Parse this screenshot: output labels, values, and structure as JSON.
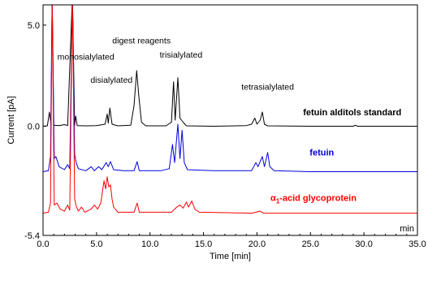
{
  "chart_data": {
    "type": "line",
    "xlabel": "Time [min]",
    "ylabel": "Current [pA]",
    "xlim": [
      0.0,
      35.0
    ],
    "ylim": [
      -5.4,
      6.0
    ],
    "x_ticks": [
      0.0,
      5.0,
      10.0,
      15.0,
      20.0,
      25.0,
      30.0,
      35.0
    ],
    "x_tick_labels": [
      "0.0",
      "5.0",
      "10.0",
      "15.0",
      "20.0",
      "25.0",
      "30.0",
      "35.0"
    ],
    "y_ticks": [
      5.0,
      0.0,
      -5.4
    ],
    "y_tick_labels": [
      "5.0",
      "0.0",
      "-5.4"
    ],
    "x_unit_label": "min",
    "grid": false,
    "series": [
      {
        "name": "fetuin alditols standard",
        "color": "#000000",
        "baseline": 0.0,
        "points": [
          [
            0.0,
            0.0
          ],
          [
            0.4,
            0.02
          ],
          [
            0.6,
            0.7
          ],
          [
            0.75,
            0.05
          ],
          [
            0.85,
            6.5
          ],
          [
            1.0,
            0.05
          ],
          [
            1.5,
            0.03
          ],
          [
            2.0,
            0.08
          ],
          [
            2.3,
            0.03
          ],
          [
            2.75,
            6.5
          ],
          [
            2.95,
            0.05
          ],
          [
            3.05,
            0.5
          ],
          [
            3.2,
            0.03
          ],
          [
            4.0,
            0.02
          ],
          [
            5.0,
            0.03
          ],
          [
            5.8,
            0.1
          ],
          [
            6.0,
            0.6
          ],
          [
            6.1,
            0.15
          ],
          [
            6.25,
            0.9
          ],
          [
            6.45,
            0.1
          ],
          [
            7.0,
            0.02
          ],
          [
            8.2,
            0.05
          ],
          [
            8.5,
            1.0
          ],
          [
            8.75,
            2.75
          ],
          [
            8.95,
            1.5
          ],
          [
            9.2,
            0.2
          ],
          [
            9.6,
            0.02
          ],
          [
            11.5,
            0.02
          ],
          [
            12.0,
            0.2
          ],
          [
            12.2,
            2.2
          ],
          [
            12.35,
            0.3
          ],
          [
            12.6,
            2.4
          ],
          [
            12.8,
            0.4
          ],
          [
            13.1,
            0.2
          ],
          [
            13.4,
            0.02
          ],
          [
            16.0,
            0.0
          ],
          [
            19.0,
            0.03
          ],
          [
            19.5,
            0.1
          ],
          [
            19.8,
            0.4
          ],
          [
            20.0,
            0.1
          ],
          [
            20.3,
            0.3
          ],
          [
            20.5,
            0.7
          ],
          [
            20.7,
            0.1
          ],
          [
            21.0,
            0.02
          ],
          [
            25.0,
            0.0
          ],
          [
            29.0,
            0.0
          ],
          [
            29.2,
            0.05
          ],
          [
            29.4,
            0.0
          ],
          [
            35.0,
            0.0
          ]
        ]
      },
      {
        "name": "fetuin",
        "color": "#0000dd",
        "baseline": -2.25,
        "points": [
          [
            0.0,
            -2.25
          ],
          [
            0.5,
            -2.2
          ],
          [
            0.7,
            -1.5
          ],
          [
            0.85,
            6.5
          ],
          [
            1.05,
            -1.6
          ],
          [
            1.2,
            -1.5
          ],
          [
            1.5,
            -2.0
          ],
          [
            2.0,
            -2.15
          ],
          [
            2.3,
            -1.9
          ],
          [
            2.5,
            -2.1
          ],
          [
            2.75,
            6.5
          ],
          [
            2.95,
            -1.4
          ],
          [
            3.1,
            -1.8
          ],
          [
            3.3,
            -2.1
          ],
          [
            4.0,
            -2.2
          ],
          [
            4.5,
            -2.0
          ],
          [
            4.8,
            -2.2
          ],
          [
            5.2,
            -2.0
          ],
          [
            5.5,
            -2.15
          ],
          [
            5.9,
            -1.8
          ],
          [
            6.1,
            -2.0
          ],
          [
            6.3,
            -1.75
          ],
          [
            6.6,
            -2.15
          ],
          [
            7.5,
            -2.2
          ],
          [
            8.5,
            -2.2
          ],
          [
            8.8,
            -1.75
          ],
          [
            9.0,
            -2.2
          ],
          [
            11.0,
            -2.2
          ],
          [
            11.8,
            -2.1
          ],
          [
            12.1,
            -0.9
          ],
          [
            12.3,
            -1.8
          ],
          [
            12.6,
            0.1
          ],
          [
            12.8,
            -1.6
          ],
          [
            13.0,
            -0.2
          ],
          [
            13.2,
            -1.8
          ],
          [
            13.5,
            -2.15
          ],
          [
            16.0,
            -2.2
          ],
          [
            19.5,
            -2.2
          ],
          [
            19.9,
            -1.8
          ],
          [
            20.1,
            -2.0
          ],
          [
            20.5,
            -1.5
          ],
          [
            20.7,
            -2.0
          ],
          [
            21.0,
            -1.3
          ],
          [
            21.2,
            -2.0
          ],
          [
            21.6,
            -2.2
          ],
          [
            25.0,
            -2.25
          ],
          [
            35.0,
            -2.25
          ]
        ]
      },
      {
        "name": "α1-acid glycoprotein",
        "color": "#ff0000",
        "baseline": -4.3,
        "points": [
          [
            0.0,
            -4.3
          ],
          [
            0.5,
            -4.25
          ],
          [
            0.7,
            -3.8
          ],
          [
            0.85,
            6.5
          ],
          [
            1.05,
            -3.9
          ],
          [
            1.3,
            -3.8
          ],
          [
            1.6,
            -4.1
          ],
          [
            2.0,
            -4.2
          ],
          [
            2.3,
            -3.9
          ],
          [
            2.5,
            -4.15
          ],
          [
            2.75,
            6.5
          ],
          [
            2.95,
            -3.6
          ],
          [
            3.1,
            -3.95
          ],
          [
            3.3,
            -4.2
          ],
          [
            3.6,
            -4.0
          ],
          [
            3.9,
            -4.25
          ],
          [
            4.5,
            -4.1
          ],
          [
            4.8,
            -3.9
          ],
          [
            5.1,
            -4.1
          ],
          [
            5.4,
            -3.8
          ],
          [
            5.7,
            -2.7
          ],
          [
            5.85,
            -3.1
          ],
          [
            6.0,
            -2.5
          ],
          [
            6.15,
            -3.0
          ],
          [
            6.3,
            -2.9
          ],
          [
            6.45,
            -3.6
          ],
          [
            6.6,
            -4.0
          ],
          [
            7.0,
            -4.25
          ],
          [
            8.5,
            -4.25
          ],
          [
            8.8,
            -3.8
          ],
          [
            9.0,
            -4.25
          ],
          [
            12.0,
            -4.25
          ],
          [
            12.5,
            -4.0
          ],
          [
            12.8,
            -3.9
          ],
          [
            13.1,
            -4.05
          ],
          [
            13.4,
            -3.75
          ],
          [
            13.6,
            -4.0
          ],
          [
            13.9,
            -3.7
          ],
          [
            14.2,
            -4.1
          ],
          [
            14.6,
            -4.25
          ],
          [
            19.5,
            -4.3
          ],
          [
            20.3,
            -4.2
          ],
          [
            20.6,
            -4.3
          ],
          [
            25.0,
            -4.3
          ],
          [
            35.0,
            -4.3
          ]
        ]
      }
    ],
    "peak_labels": [
      {
        "text": "monosialylated",
        "x": 4.0,
        "y": 3.3
      },
      {
        "text": "disialylated",
        "x": 6.4,
        "y": 2.15
      },
      {
        "text": "digest reagents",
        "x": 9.2,
        "y": 4.1
      },
      {
        "text": "trisialylated",
        "x": 12.9,
        "y": 3.4
      },
      {
        "text": "tetrasialylated",
        "x": 21.0,
        "y": 1.8
      }
    ],
    "series_labels": [
      {
        "text": "fetuin alditols standard",
        "x": 33.5,
        "y": 0.55,
        "color": "#000000"
      },
      {
        "text": "fetuin",
        "x": 27.2,
        "y": -1.45,
        "color": "#0000dd"
      },
      {
        "text": "α1-acid glycoprotein",
        "x": 29.3,
        "y": -3.7,
        "color": "#ff0000"
      }
    ]
  }
}
